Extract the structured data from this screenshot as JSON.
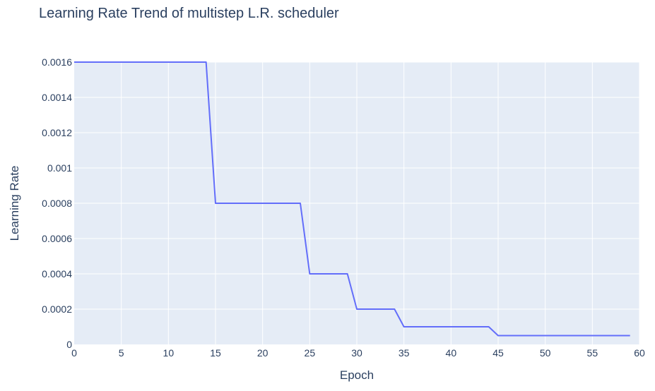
{
  "chart_data": {
    "type": "line",
    "title": "Learning Rate Trend of multistep L.R. scheduler",
    "xlabel": "Epoch",
    "ylabel": "Learning Rate",
    "xlim": [
      0,
      60
    ],
    "ylim": [
      0,
      0.0016
    ],
    "grid": true,
    "x_ticks": [
      0,
      5,
      10,
      15,
      20,
      25,
      30,
      35,
      40,
      45,
      50,
      55,
      60
    ],
    "x_tick_labels": [
      "0",
      "5",
      "10",
      "15",
      "20",
      "25",
      "30",
      "35",
      "40",
      "45",
      "50",
      "55",
      "60"
    ],
    "y_ticks": [
      0,
      0.0002,
      0.0004,
      0.0006,
      0.0008,
      0.001,
      0.0012,
      0.0014,
      0.0016
    ],
    "y_tick_labels": [
      "0",
      "0.0002",
      "0.0004",
      "0.0006",
      "0.0008",
      "0.001",
      "0.0012",
      "0.0014",
      "0.0016"
    ],
    "series": [
      {
        "color": "#636efa",
        "x": [
          0,
          14,
          15,
          24,
          25,
          29,
          30,
          34,
          35,
          44,
          45,
          59
        ],
        "y": [
          0.0016,
          0.0016,
          0.0008,
          0.0008,
          0.0004,
          0.0004,
          0.0002,
          0.0002,
          0.0001,
          0.0001,
          5e-05,
          5e-05
        ]
      }
    ],
    "colors": {
      "plot_background": "#e5ecf6",
      "gridline": "#ffffff",
      "text": "#2a3f5f"
    }
  }
}
